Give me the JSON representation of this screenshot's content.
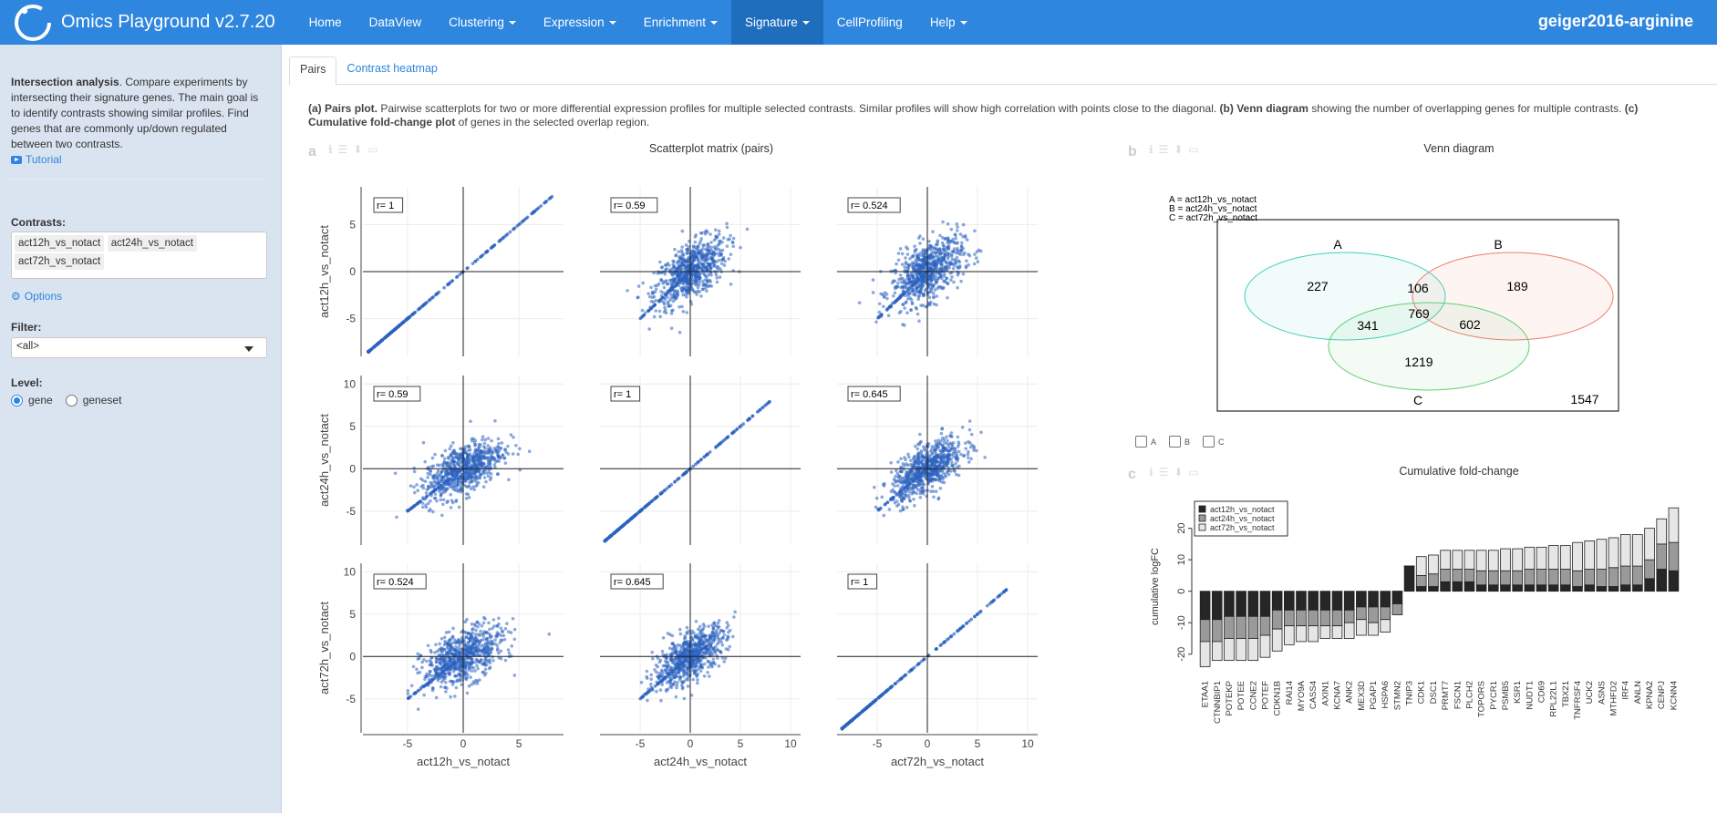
{
  "app": {
    "title": "Omics Playground v2.7.20",
    "dataset": "geiger2016-arginine"
  },
  "nav": {
    "items": [
      {
        "label": "Home",
        "dropdown": false,
        "active": false
      },
      {
        "label": "DataView",
        "dropdown": false,
        "active": false
      },
      {
        "label": "Clustering",
        "dropdown": true,
        "active": false
      },
      {
        "label": "Expression",
        "dropdown": true,
        "active": false
      },
      {
        "label": "Enrichment",
        "dropdown": true,
        "active": false
      },
      {
        "label": "Signature",
        "dropdown": true,
        "active": true
      },
      {
        "label": "CellProfiling",
        "dropdown": false,
        "active": false
      },
      {
        "label": "Help",
        "dropdown": true,
        "active": false
      }
    ]
  },
  "sidebar": {
    "intro_bold": "Intersection analysis",
    "intro_text": ". Compare experiments by intersecting their signature genes. The main goal is to identify contrasts showing similar profiles. Find genes that are commonly up/down regulated between two contrasts.",
    "tutorial": "Tutorial",
    "contrasts_label": "Contrasts:",
    "contrasts": [
      "act12h_vs_notact",
      "act24h_vs_notact",
      "act72h_vs_notact"
    ],
    "options": "Options",
    "filter_label": "Filter:",
    "filter_value": "<all>",
    "level_label": "Level:",
    "level_options": [
      "gene",
      "geneset"
    ],
    "level_selected": "gene"
  },
  "tabs": [
    {
      "label": "Pairs",
      "active": true
    },
    {
      "label": "Contrast heatmap",
      "active": false
    }
  ],
  "description": {
    "a_bold": "(a) Pairs plot.",
    "a_text": " Pairwise scatterplots for two or more differential expression profiles for multiple selected contrasts. Similar profiles will show high correlation with points close to the diagonal. ",
    "b_bold": "(b) Venn diagram",
    "b_text": " showing the number of overlapping genes for multiple contrasts. ",
    "c_bold": "(c) Cumulative fold-change plot",
    "c_text": " of genes in the selected overlap region."
  },
  "panel_a": {
    "letter": "a",
    "title": "Scatterplot matrix (pairs)",
    "contrasts": [
      "act12h_vs_notact",
      "act24h_vs_notact",
      "act72h_vs_notact"
    ],
    "correlations": [
      [
        "r= 1",
        "r= 0.59",
        "r= 0.524"
      ],
      [
        "r= 0.59",
        "r= 1",
        "r= 0.645"
      ],
      [
        "r= 0.524",
        "r= 0.645",
        "r= 1"
      ]
    ],
    "x_ticks": [
      [
        "-5",
        "0",
        "5"
      ],
      [
        "-5",
        "0",
        "5",
        "10"
      ],
      [
        "-5",
        "0",
        "5",
        "10"
      ]
    ],
    "y_ticks": [
      [
        "5",
        "0",
        "-5"
      ],
      [
        "10",
        "5",
        "0",
        "-5"
      ],
      [
        "10",
        "5",
        "0",
        "-5"
      ]
    ]
  },
  "panel_b": {
    "letter": "b",
    "title": "Venn diagram",
    "legend": [
      "A = act12h_vs_notact",
      "B = act24h_vs_notact",
      "C = act72h_vs_notact"
    ],
    "sets": [
      "A",
      "B",
      "C"
    ],
    "regions": {
      "A_only": "227",
      "B_only": "189",
      "AB": "106",
      "ABC": "769",
      "AC": "341",
      "BC": "602",
      "C_only": "1219",
      "none": "1547"
    },
    "checkboxes": [
      "A",
      "B",
      "C"
    ],
    "colors": {
      "A": "#40d0c0",
      "B": "#f07a6a",
      "C": "#60d070"
    }
  },
  "panel_c": {
    "letter": "c",
    "title": "Cumulative fold-change",
    "ylabel": "cumulative logFC",
    "legend": [
      "act12h_vs_notact",
      "act24h_vs_notact",
      "act72h_vs_notact"
    ],
    "colors": [
      "#262626",
      "#9a9a9a",
      "#e6e6e6"
    ]
  },
  "chart_data": {
    "type": "bar",
    "stacked": true,
    "title": "Cumulative fold-change",
    "ylabel": "cumulative logFC",
    "ylim": [
      -25,
      28
    ],
    "yticks": [
      -20,
      -10,
      0,
      10,
      20
    ],
    "categories": [
      "ETAA1",
      "CTNNBIP1",
      "POTEKP",
      "POTEE",
      "CCNE2",
      "POTEF",
      "CDKN1B",
      "RAI14",
      "MYO9A",
      "CASS4",
      "AXIN1",
      "KCNA7",
      "ANK2",
      "MEX3D",
      "PGAP1",
      "HSPA6",
      "STMN2",
      "TNIP3",
      "CDK1",
      "DSC1",
      "PRMT7",
      "FSCN1",
      "PLCH2",
      "TOPORS",
      "PYCR1",
      "PSMB5",
      "KSR1",
      "NUDT1",
      "CD69",
      "RPL22L1",
      "TBX21",
      "TNFRSF4",
      "UCK2",
      "ASNS",
      "MTHFD2",
      "IRF4",
      "ANLN",
      "KPNA2",
      "CENPJ",
      "KCNN4"
    ],
    "series": [
      {
        "name": "act12h_vs_notact",
        "values": [
          -9,
          -9,
          -8,
          -8,
          -8,
          -8,
          -6,
          -6,
          -6,
          -6,
          -6,
          -6,
          -6,
          -5,
          -5,
          -5,
          -4,
          8,
          1.5,
          1.5,
          3,
          3,
          3,
          2,
          2,
          2,
          2,
          2,
          2,
          2,
          2,
          1.5,
          2,
          1.5,
          1.5,
          2,
          2,
          4,
          7,
          6.5
        ]
      },
      {
        "name": "act24h_vs_notact",
        "values": [
          -7,
          -7,
          -7,
          -7,
          -7,
          -6,
          -6,
          -5,
          -5,
          -5,
          -5,
          -5,
          -4,
          -4,
          -5,
          -4,
          -3.5,
          0,
          3.5,
          4,
          4,
          4,
          4,
          4.5,
          4.5,
          4.5,
          4.5,
          5,
          5,
          5,
          5,
          5,
          5,
          5.5,
          6,
          6,
          6,
          6,
          8,
          9
        ]
      },
      {
        "name": "act72h_vs_notact",
        "values": [
          -8,
          -6,
          -7,
          -7,
          -7,
          -7,
          -7,
          -6,
          -5,
          -5,
          -4,
          -4,
          -5,
          -5,
          -4,
          -4,
          0,
          0,
          6,
          6,
          6,
          6,
          6,
          6.5,
          6.5,
          7,
          7,
          7,
          7,
          7.5,
          7.5,
          9,
          9,
          9.5,
          9.5,
          10,
          10,
          10,
          8,
          11
        ]
      }
    ]
  }
}
